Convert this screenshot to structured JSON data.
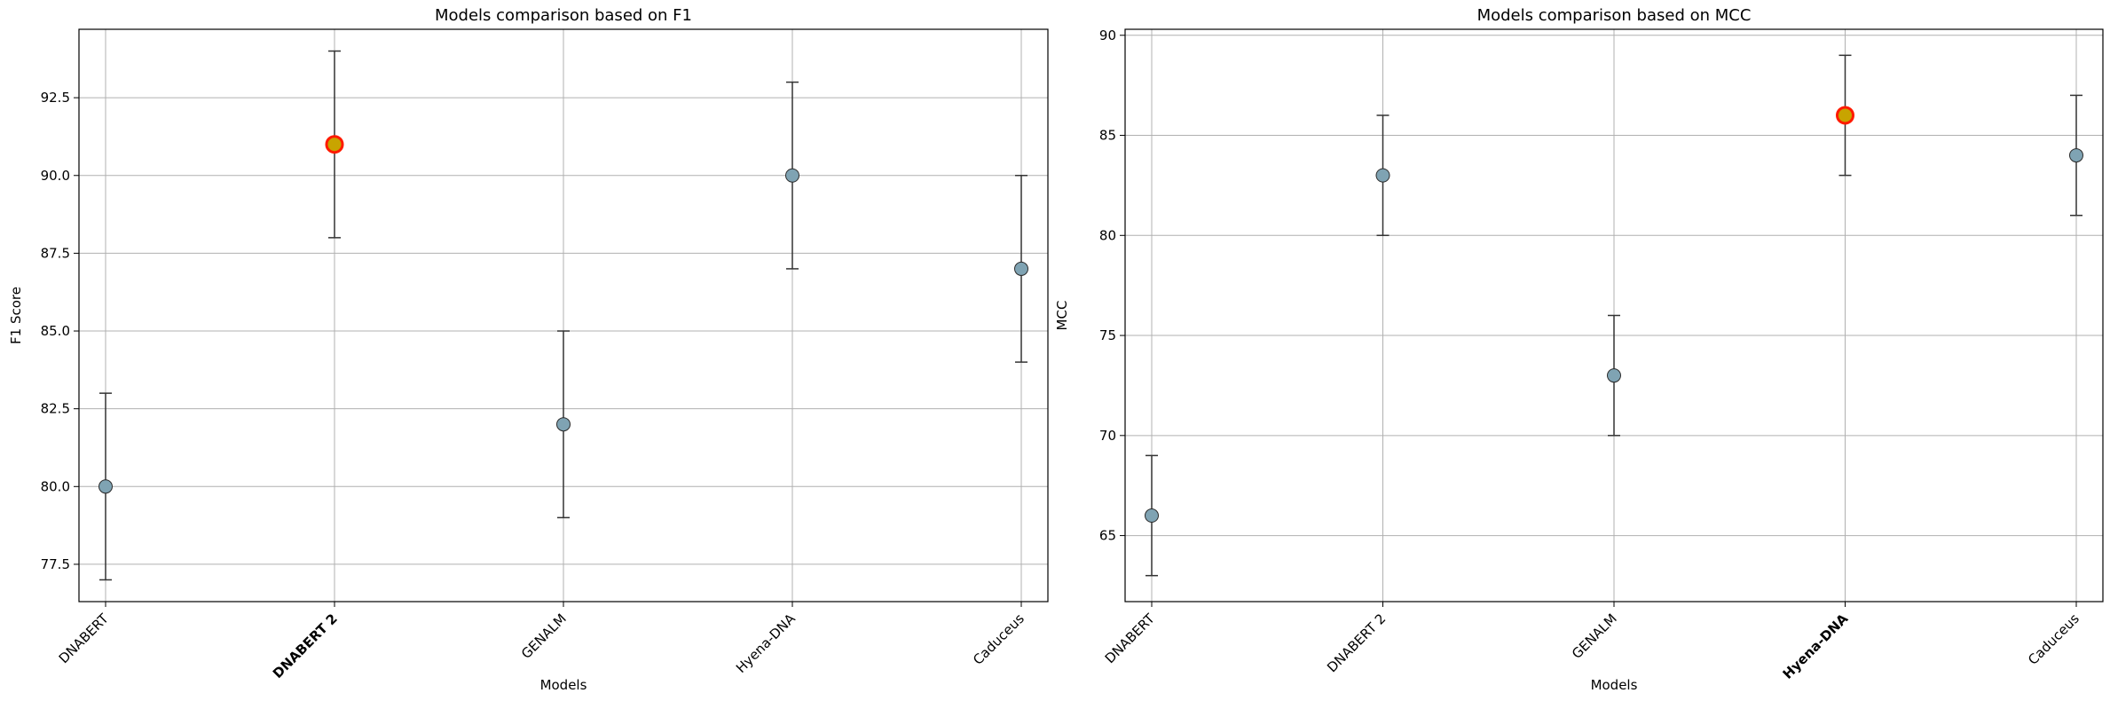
{
  "figure": {
    "background": "#ffffff"
  },
  "chart_data": [
    {
      "type": "scatter",
      "title": "Models comparison based on F1",
      "xlabel": "Models",
      "ylabel": "F1 Score",
      "categories": [
        "DNABERT",
        "DNABERT 2",
        "GENALM",
        "Hyena-DNA",
        "Caduceus"
      ],
      "values": [
        80,
        91,
        82,
        90,
        87
      ],
      "errors": [
        3,
        3,
        3,
        3,
        3
      ],
      "highlight_index": 1,
      "ylim": [
        76.3,
        94.7
      ],
      "yticks": [
        77.5,
        80.0,
        82.5,
        85.0,
        87.5,
        90.0,
        92.5
      ],
      "ytick_labels": [
        "77.5",
        "80.0",
        "82.5",
        "85.0",
        "87.5",
        "90.0",
        "92.5"
      ],
      "grid": true,
      "colors": {
        "marker_fill": "#7fa3b3",
        "marker_edge": "#2b2b2b",
        "highlight_fill": "#c8a400",
        "highlight_edge": "#ff1a00",
        "errorbar": "#333333",
        "grid": "#b0b0b0"
      }
    },
    {
      "type": "scatter",
      "title": "Models comparison based on MCC",
      "xlabel": "Models",
      "ylabel": "MCC",
      "categories": [
        "DNABERT",
        "DNABERT 2",
        "GENALM",
        "Hyena-DNA",
        "Caduceus"
      ],
      "values": [
        66,
        83,
        73,
        86,
        84
      ],
      "errors": [
        3,
        3,
        3,
        3,
        3
      ],
      "highlight_index": 3,
      "ylim": [
        61.7,
        90.3
      ],
      "yticks": [
        65,
        70,
        75,
        80,
        85,
        90
      ],
      "ytick_labels": [
        "65",
        "70",
        "75",
        "80",
        "85",
        "90"
      ],
      "grid": true,
      "colors": {
        "marker_fill": "#7fa3b3",
        "marker_edge": "#2b2b2b",
        "highlight_fill": "#c8a400",
        "highlight_edge": "#ff1a00",
        "errorbar": "#333333",
        "grid": "#b0b0b0"
      }
    }
  ]
}
